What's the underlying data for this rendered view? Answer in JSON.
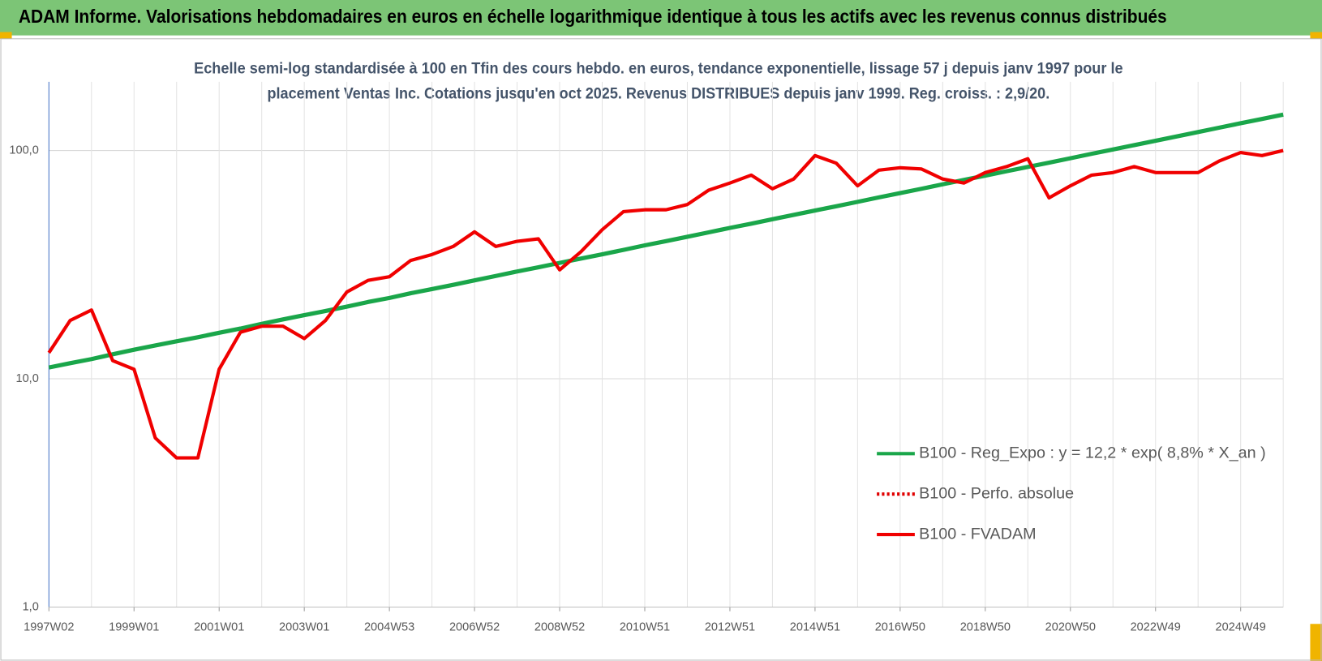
{
  "chart_data": {
    "type": "line",
    "title": "ADAM Informe. Valorisations hebdomadaires en euros en échelle logarithmique identique à tous les actifs avec les revenus connus distribués",
    "subtitle": [
      "Echelle semi-log standardisée à 100 en Tfin des cours hebdo. en euros, tendance exponentielle, lissage 57 j depuis janv 1997 pour le",
      "placement Ventas Inc. Cotations jusqu'en oct 2025. Revenus DISTRIBUES depuis janv 1999. Reg. croiss. : 2,9/20."
    ],
    "categories": [
      "1997W02",
      null,
      null,
      null,
      "1999W01",
      null,
      null,
      null,
      "2001W01",
      null,
      null,
      null,
      "2003W01",
      null,
      null,
      null,
      "2004W53",
      null,
      null,
      null,
      "2006W52",
      null,
      null,
      null,
      "2008W52",
      null,
      null,
      null,
      "2010W51",
      null,
      null,
      null,
      "2012W51",
      null,
      null,
      null,
      "2014W51",
      null,
      null,
      null,
      "2016W50",
      null,
      null,
      null,
      "2018W50",
      null,
      null,
      null,
      "2020W50",
      null,
      null,
      null,
      "2022W49",
      null,
      null,
      null,
      "2024W49",
      null,
      null
    ],
    "series": [
      {
        "name": "B100 - Reg_Expo : y = 12,2 * exp( 8,8% *  X_an )",
        "color": "#1aa64a",
        "style": "solid",
        "values": [
          11.2,
          11.7,
          12.2,
          12.8,
          13.4,
          14.0,
          14.6,
          15.2,
          15.9,
          16.6,
          17.4,
          18.2,
          19.0,
          19.8,
          20.7,
          21.7,
          22.6,
          23.7,
          24.7,
          25.8,
          27.0,
          28.2,
          29.5,
          30.8,
          32.2,
          33.6,
          35.1,
          36.7,
          38.4,
          40.1,
          41.9,
          43.8,
          45.8,
          47.8,
          50.0,
          52.2,
          54.6,
          57.0,
          59.6,
          62.3,
          65.1,
          68.0,
          71.1,
          74.3,
          77.6,
          81.1,
          84.7,
          88.5,
          92.5,
          96.7,
          101.0,
          105.6,
          110.3,
          115.3,
          120.5,
          125.9,
          131.6,
          137.5,
          143.7
        ]
      },
      {
        "name": "B100 - Perfo. absolue",
        "color": "#e00000",
        "style": "dotted",
        "values": [
          null,
          null,
          null,
          null,
          null,
          null,
          null,
          null,
          null,
          null,
          null,
          null,
          null,
          null,
          null,
          null,
          null,
          null,
          null,
          null,
          null,
          null,
          null,
          null,
          null,
          null,
          null,
          null,
          null,
          null,
          null,
          null,
          null,
          null,
          null,
          null,
          null,
          null,
          null,
          null,
          null,
          null,
          null,
          null,
          null,
          null,
          null,
          null,
          null,
          null,
          null,
          null,
          null,
          null,
          null,
          null,
          null,
          null,
          null
        ]
      },
      {
        "name": "B100 - FVADAM",
        "color": "#f00000",
        "style": "solid",
        "values": [
          13,
          18,
          20,
          12,
          11,
          5.5,
          4.5,
          4.5,
          11,
          16,
          17,
          17,
          15,
          18,
          24,
          27,
          28,
          33,
          35,
          38,
          44,
          38,
          40,
          41,
          30,
          36,
          45,
          54,
          55,
          55,
          58,
          67,
          72,
          78,
          68,
          75,
          95,
          88,
          70,
          82,
          84,
          83,
          75,
          72,
          80,
          85,
          92,
          62,
          70,
          78,
          80,
          85,
          80,
          80,
          80,
          90,
          98,
          95,
          100
        ]
      }
    ],
    "log_y": true,
    "ylim": [
      1,
      200
    ],
    "yticks": [
      {
        "value": 1,
        "label": "1,0"
      },
      {
        "value": 10,
        "label": "10,0"
      },
      {
        "value": 100,
        "label": "100,0"
      }
    ],
    "grid": true,
    "legend": "lower-right"
  }
}
